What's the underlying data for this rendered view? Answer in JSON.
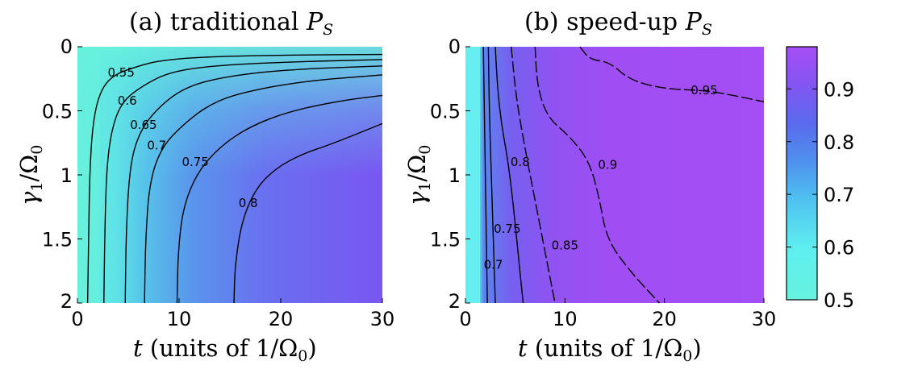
{
  "chart_data": [
    {
      "type": "heatmap",
      "panel": "a",
      "title": "(a) traditional P_S",
      "title_text": "(a) traditional ",
      "title_var": "P",
      "title_sub": "S",
      "xlabel": "t (units of 1/Ω0)",
      "xlabel_parts": {
        "var": "t",
        "text": " (units of 1/Ω",
        "sub": "0",
        "close": ")"
      },
      "ylabel": "γ1/Ω0",
      "ylabel_parts": {
        "g": "γ",
        "gsub": "1",
        "slash": "/Ω",
        "osub": "0"
      },
      "xlim": [
        0,
        30
      ],
      "ylim": [
        0,
        2
      ],
      "y_inverted": true,
      "xticks": [
        "0",
        "10",
        "20",
        "30"
      ],
      "yticks": [
        "0",
        "0.5",
        "1",
        "1.5",
        "2"
      ],
      "contour_levels": [
        0.55,
        0.6,
        0.65,
        0.7,
        0.75,
        0.8
      ],
      "contour_labels": [
        {
          "text": "0.55",
          "x": 4.3,
          "y": 0.2
        },
        {
          "text": "0.6",
          "x": 4.9,
          "y": 0.42
        },
        {
          "text": "0.65",
          "x": 6.5,
          "y": 0.61
        },
        {
          "text": "0.7",
          "x": 7.8,
          "y": 0.77
        },
        {
          "text": "0.75",
          "x": 11.6,
          "y": 0.9
        },
        {
          "text": "0.8",
          "x": 16.8,
          "y": 1.22
        }
      ],
      "contours": [
        {
          "level": 0.55,
          "style": "solid",
          "points": [
            [
              1.0,
              2
            ],
            [
              1.1,
              1.5
            ],
            [
              1.2,
              1.0
            ],
            [
              1.5,
              0.6
            ],
            [
              2.2,
              0.35
            ],
            [
              3.5,
              0.22
            ],
            [
              6,
              0.15
            ],
            [
              8,
              0.11
            ],
            [
              12,
              0.08
            ],
            [
              20,
              0.065
            ],
            [
              30,
              0.06
            ]
          ]
        },
        {
          "level": 0.6,
          "style": "solid",
          "points": [
            [
              2.6,
              2
            ],
            [
              2.7,
              1.4
            ],
            [
              2.9,
              0.9
            ],
            [
              3.5,
              0.6
            ],
            [
              4.5,
              0.42
            ],
            [
              6.5,
              0.3
            ],
            [
              9,
              0.2
            ],
            [
              13,
              0.15
            ],
            [
              20,
              0.12
            ],
            [
              30,
              0.1
            ]
          ]
        },
        {
          "level": 0.65,
          "style": "solid",
          "points": [
            [
              4.7,
              2
            ],
            [
              4.8,
              1.4
            ],
            [
              5.2,
              0.9
            ],
            [
              6.2,
              0.65
            ],
            [
              8,
              0.47
            ],
            [
              10.5,
              0.32
            ],
            [
              14,
              0.24
            ],
            [
              20,
              0.18
            ],
            [
              30,
              0.15
            ]
          ]
        },
        {
          "level": 0.7,
          "style": "solid",
          "points": [
            [
              6.6,
              2
            ],
            [
              6.7,
              1.5
            ],
            [
              7.1,
              1.05
            ],
            [
              8.3,
              0.78
            ],
            [
              10.5,
              0.6
            ],
            [
              13,
              0.45
            ],
            [
              16,
              0.36
            ],
            [
              22,
              0.27
            ],
            [
              30,
              0.22
            ]
          ]
        },
        {
          "level": 0.75,
          "style": "solid",
          "points": [
            [
              9.8,
              2
            ],
            [
              9.9,
              1.6
            ],
            [
              10.4,
              1.25
            ],
            [
              11.8,
              0.98
            ],
            [
              14,
              0.78
            ],
            [
              17,
              0.62
            ],
            [
              21,
              0.5
            ],
            [
              26,
              0.42
            ],
            [
              30,
              0.38
            ]
          ]
        },
        {
          "level": 0.8,
          "style": "solid",
          "points": [
            [
              15.4,
              2
            ],
            [
              15.5,
              1.7
            ],
            [
              16.2,
              1.35
            ],
            [
              17.6,
              1.1
            ],
            [
              19.5,
              0.95
            ],
            [
              22,
              0.84
            ],
            [
              25,
              0.76
            ],
            [
              30,
              0.6
            ]
          ]
        }
      ]
    },
    {
      "type": "heatmap",
      "panel": "b",
      "title": "(b) speed-up P_S",
      "title_text": "(b) speed-up ",
      "title_var": "P",
      "title_sub": "S",
      "xlabel": "t (units of 1/Ω0)",
      "xlabel_parts": {
        "var": "t",
        "text": " (units of 1/Ω",
        "sub": "0",
        "close": ")"
      },
      "ylabel": "γ1/Ω0",
      "ylabel_parts": {
        "g": "γ",
        "gsub": "1",
        "slash": "/Ω",
        "osub": "0"
      },
      "xlim": [
        0,
        30
      ],
      "ylim": [
        0,
        2
      ],
      "y_inverted": true,
      "xticks": [
        "0",
        "10",
        "20",
        "30"
      ],
      "yticks": [
        "0",
        "0.5",
        "1",
        "1.5",
        "2"
      ],
      "contour_levels": [
        0.7,
        0.75,
        0.8,
        0.85,
        0.9,
        0.95
      ],
      "contour_labels": [
        {
          "text": "0.7",
          "x": 2.8,
          "y": 1.7
        },
        {
          "text": "0.75",
          "x": 4.2,
          "y": 1.42
        },
        {
          "text": "0.8",
          "x": 5.5,
          "y": 0.9
        },
        {
          "text": "0.85",
          "x": 10.0,
          "y": 1.55
        },
        {
          "text": "0.9",
          "x": 14.3,
          "y": 0.92
        },
        {
          "text": "0.95",
          "x": 24.0,
          "y": 0.34
        }
      ],
      "contours": [
        {
          "level": 0.7,
          "style": "solid",
          "points": [
            [
              1.8,
              0
            ],
            [
              1.9,
              0.5
            ],
            [
              2.0,
              1.0
            ],
            [
              2.1,
              1.5
            ],
            [
              2.2,
              2
            ]
          ]
        },
        {
          "level": 0.75,
          "style": "solid",
          "points": [
            [
              2.3,
              0
            ],
            [
              2.4,
              0.5
            ],
            [
              2.6,
              1.0
            ],
            [
              2.8,
              1.5
            ],
            [
              3.0,
              2
            ]
          ]
        },
        {
          "level": 0.8,
          "style": "solid",
          "points": [
            [
              3.0,
              0
            ],
            [
              3.2,
              0.3
            ],
            [
              3.6,
              0.6
            ],
            [
              4.3,
              0.9
            ],
            [
              4.9,
              1.3
            ],
            [
              5.4,
              1.7
            ],
            [
              5.8,
              2
            ]
          ]
        },
        {
          "level": 0.85,
          "style": "dashed",
          "points": [
            [
              4.6,
              0
            ],
            [
              5.1,
              0.4
            ],
            [
              6.0,
              0.8
            ],
            [
              7.0,
              1.2
            ],
            [
              8.0,
              1.6
            ],
            [
              9.0,
              2
            ]
          ]
        },
        {
          "level": 0.9,
          "style": "dashed",
          "points": [
            [
              7.0,
              0
            ],
            [
              7.2,
              0.3
            ],
            [
              8.2,
              0.55
            ],
            [
              10.5,
              0.7
            ],
            [
              12.5,
              0.9
            ],
            [
              13.5,
              1.2
            ],
            [
              14.2,
              1.5
            ],
            [
              16.5,
              1.75
            ],
            [
              19.5,
              2
            ]
          ]
        },
        {
          "level": 0.95,
          "style": "dashed",
          "points": [
            [
              11.5,
              0
            ],
            [
              12.5,
              0.1
            ],
            [
              14.5,
              0.12
            ],
            [
              16.5,
              0.26
            ],
            [
              20,
              0.33
            ],
            [
              24,
              0.34
            ],
            [
              27,
              0.38
            ],
            [
              30,
              0.43
            ]
          ]
        }
      ]
    }
  ],
  "colorbar": {
    "min": 0.5,
    "max": 0.98,
    "ticks": [
      "0.5",
      "0.6",
      "0.7",
      "0.8",
      "0.9"
    ],
    "colors": [
      "#66f2de",
      "#5ff0f0",
      "#55cff0",
      "#4aa0f0",
      "#5a78ee",
      "#7a5cf0",
      "#9350f2",
      "#a24ef4"
    ]
  }
}
